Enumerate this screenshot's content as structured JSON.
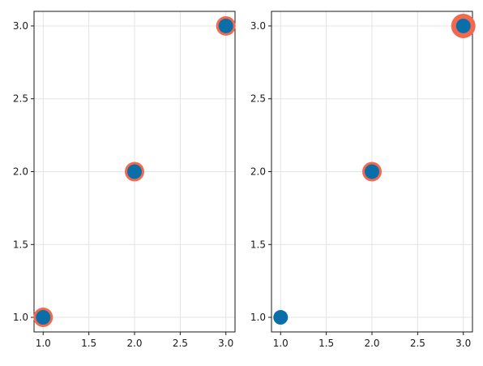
{
  "chart_data": [
    {
      "type": "scatter",
      "title": "",
      "xlabel": "",
      "ylabel": "",
      "xlim": [
        0.9,
        3.1
      ],
      "ylim": [
        0.9,
        3.1
      ],
      "xticks": [
        "1.0",
        "1.5",
        "2.0",
        "2.5",
        "3.0"
      ],
      "yticks": [
        "1.0",
        "1.5",
        "2.0",
        "2.5",
        "3.0"
      ],
      "grid": true,
      "series": [
        {
          "color": "#f4694e",
          "role": "outer",
          "x": [
            1,
            2,
            3
          ],
          "y": [
            1,
            2,
            3
          ],
          "sizes": [
            1,
            1,
            1
          ]
        },
        {
          "color": "#0a6fa8",
          "role": "inner",
          "x": [
            1,
            2,
            3
          ],
          "y": [
            1,
            2,
            3
          ]
        }
      ]
    },
    {
      "type": "scatter",
      "title": "",
      "xlabel": "",
      "ylabel": "",
      "xlim": [
        0.9,
        3.1
      ],
      "ylim": [
        0.9,
        3.1
      ],
      "xticks": [
        "1.0",
        "1.5",
        "2.0",
        "2.5",
        "3.0"
      ],
      "yticks": [
        "1.0",
        "1.5",
        "2.0",
        "2.5",
        "3.0"
      ],
      "grid": true,
      "series": [
        {
          "color": "#f4694e",
          "role": "outer",
          "x": [
            1,
            2,
            3
          ],
          "y": [
            1,
            2,
            3
          ],
          "sizes": [
            0,
            1,
            2
          ]
        },
        {
          "color": "#0a6fa8",
          "role": "inner",
          "x": [
            1,
            2,
            3
          ],
          "y": [
            1,
            2,
            3
          ]
        }
      ]
    }
  ]
}
